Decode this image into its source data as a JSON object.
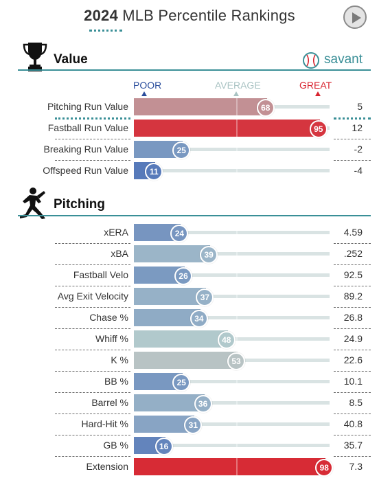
{
  "header": {
    "year": "2024",
    "title_rest": " MLB Percentile Rankings"
  },
  "sections": {
    "value": {
      "title": "Value"
    },
    "pitching": {
      "title": "Pitching"
    }
  },
  "brand": {
    "name": "savant"
  },
  "scale": {
    "poor": "POOR",
    "average": "AVERAGE",
    "great": "GREAT"
  },
  "colors": {
    "poor_blue": "#3c62b4",
    "average_gray": "#b6cdcd",
    "great_red": "#d8242f",
    "teal": "#3a8f97"
  },
  "value_rows": [
    {
      "label": "Pitching Run Value",
      "percentile": 68,
      "value": "5"
    },
    {
      "label": "Fastball Run Value",
      "percentile": 95,
      "value": "12"
    },
    {
      "label": "Breaking Run Value",
      "percentile": 25,
      "value": "-2"
    },
    {
      "label": "Offspeed Run Value",
      "percentile": 11,
      "value": "-4"
    }
  ],
  "pitching_rows": [
    {
      "label": "xERA",
      "percentile": 24,
      "value": "4.59"
    },
    {
      "label": "xBA",
      "percentile": 39,
      "value": ".252"
    },
    {
      "label": "Fastball Velo",
      "percentile": 26,
      "value": "92.5"
    },
    {
      "label": "Avg Exit Velocity",
      "percentile": 37,
      "value": "89.2"
    },
    {
      "label": "Chase %",
      "percentile": 34,
      "value": "26.8"
    },
    {
      "label": "Whiff %",
      "percentile": 48,
      "value": "24.9"
    },
    {
      "label": "K %",
      "percentile": 53,
      "value": "22.6"
    },
    {
      "label": "BB %",
      "percentile": 25,
      "value": "10.1"
    },
    {
      "label": "Barrel %",
      "percentile": 36,
      "value": "8.5"
    },
    {
      "label": "Hard-Hit %",
      "percentile": 31,
      "value": "40.8"
    },
    {
      "label": "GB %",
      "percentile": 16,
      "value": "35.7"
    },
    {
      "label": "Extension",
      "percentile": 98,
      "value": "7.3"
    }
  ]
}
